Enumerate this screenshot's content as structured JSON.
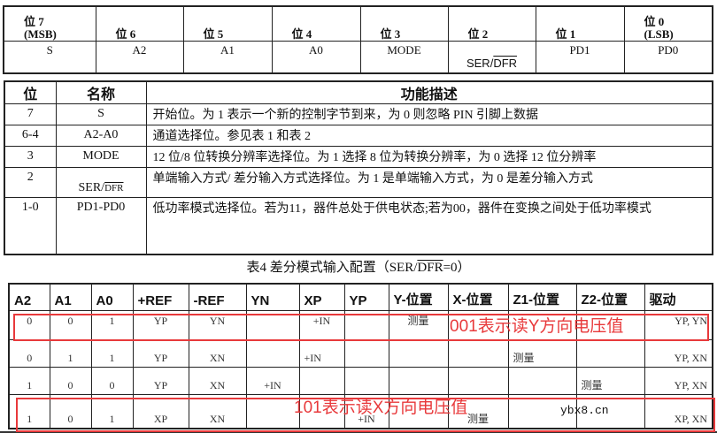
{
  "table1": {
    "headers": [
      {
        "line1": "位 7",
        "line2": "(MSB)"
      },
      {
        "line1": "",
        "line2": "位 6"
      },
      {
        "line1": "",
        "line2": "位 5"
      },
      {
        "line1": "",
        "line2": "位 4"
      },
      {
        "line1": "",
        "line2": "位 3"
      },
      {
        "line1": "",
        "line2": "位 2"
      },
      {
        "line1": "",
        "line2": "位 1"
      },
      {
        "line1": "位 0",
        "line2": "(LSB)"
      }
    ],
    "values": [
      "S",
      "A2",
      "A1",
      "A0",
      "MODE",
      "SER/",
      "PD1",
      "PD0"
    ],
    "ser_overline": "DFR"
  },
  "table2": {
    "headers": [
      "位",
      "名称",
      "功能描述"
    ],
    "rows": [
      {
        "bit": "7",
        "name": "S",
        "desc": "开始位。为 1 表示一个新的控制字节到来，为 0 则忽略 PIN 引脚上数据"
      },
      {
        "bit": "6-4",
        "name": "A2-A0",
        "desc": "通道选择位。参见表 1 和表 2"
      },
      {
        "bit": "3",
        "name": "MODE",
        "desc": "12 位/8 位转换分辨率选择位。为 1 选择 8 位为转换分辨率，为 0 选择 12 位分辨率"
      },
      {
        "bit": "2",
        "name": "SER/",
        "name_overline": "DFR",
        "desc": "单端输入方式/ 差分输入方式选择位。为 1 是单端输入方式，为 0 是差分输入方式"
      },
      {
        "bit": "1-0",
        "name": "PD1-PD0",
        "desc": "低功率模式选择位。若为11，器件总处于供电状态;若为00，器件在变换之间处于低功率模式"
      }
    ]
  },
  "caption": {
    "prefix": "表4  差分模式输入配置（SER/",
    "overline": "DFR",
    "suffix": "=0）"
  },
  "table3": {
    "headers": [
      "A2",
      "A1",
      "A0",
      "+REF",
      "-REF",
      "YN",
      "XP",
      "YP",
      "Y-位置",
      "X-位置",
      "Z1-位置",
      "Z2-位置",
      "驱动"
    ],
    "rows": [
      [
        "0",
        "0",
        "1",
        "YP",
        "YN",
        "",
        "+IN",
        "",
        "测量",
        "",
        "",
        "",
        "YP, YN"
      ],
      [
        "0",
        "1",
        "1",
        "YP",
        "XN",
        "",
        "+IN",
        "",
        "",
        "",
        "测量",
        "",
        "YP, XN"
      ],
      [
        "1",
        "0",
        "0",
        "YP",
        "XN",
        "+IN",
        "",
        "",
        "",
        "",
        "",
        "测量",
        "YP, XN"
      ],
      [
        "1",
        "0",
        "1",
        "XP",
        "XN",
        "",
        "",
        "+IN",
        "",
        "测量",
        "",
        "",
        "XP, XN"
      ]
    ]
  },
  "annotations": [
    {
      "text": "001表示读Y方向电压值",
      "color": "#e8393b"
    },
    {
      "text": "101表示读X方向电压值",
      "color": "#e8393b"
    }
  ],
  "watermark": "ybx8.cn"
}
